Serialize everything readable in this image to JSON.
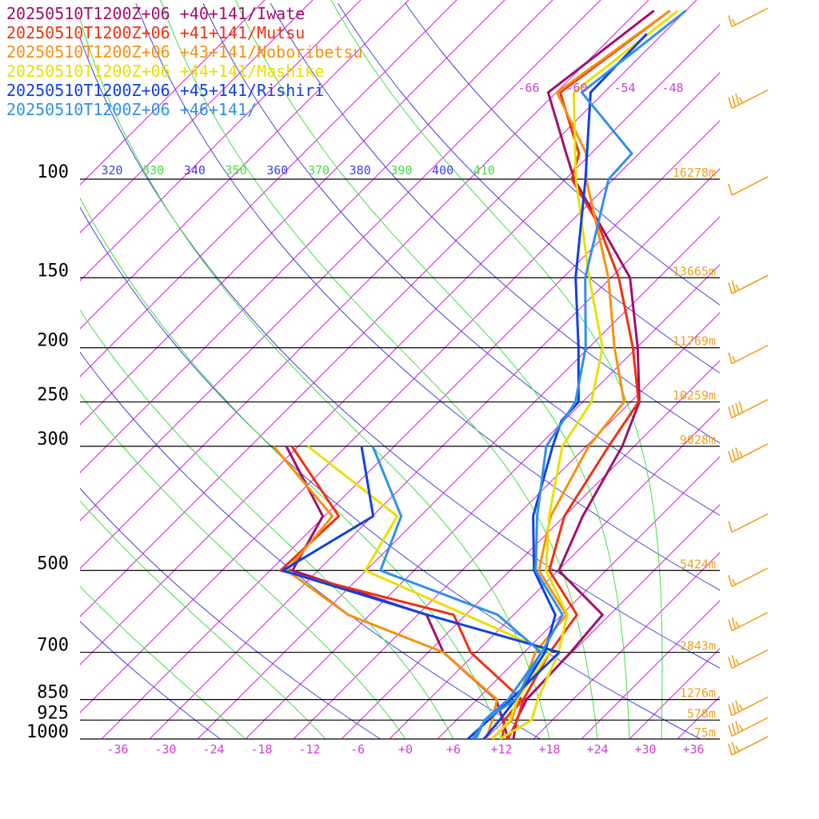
{
  "legend": [
    {
      "text": "20250510T1200Z+06 +40+141/Iwate",
      "color": "#a0106a"
    },
    {
      "text": "20250510T1200Z+06 +41+141/Mutsu",
      "color": "#f03010"
    },
    {
      "text": "20250510T1200Z+06 +43+141/Noboribetsu",
      "color": "#f89010"
    },
    {
      "text": "20250510T1200Z+06 +44+141/Mashike",
      "color": "#e8e000"
    },
    {
      "text": "20250510T1200Z+06 +45+141/Rishiri",
      "color": "#1040e0"
    },
    {
      "text": "20250510T1200Z+06 +46+141/",
      "color": "#3090e8"
    }
  ],
  "colors": {
    "isobar": "#000000",
    "isotherm": "#d020d0",
    "dry_adiabat": "#4040e0",
    "moist_adiabat": "#40e040",
    "height_label": "#f0a020",
    "wind_barb": "#f0a020",
    "tick_label": "#d040d0"
  },
  "chart_data": {
    "type": "line",
    "title": "",
    "xlabel": "",
    "ylabel": "",
    "y_scale": "log (pressure, hPa)",
    "pressure_levels": [
      100,
      150,
      200,
      250,
      300,
      500,
      700,
      850,
      925,
      1000
    ],
    "pressure_labels": [
      "100",
      "150",
      "200",
      "250",
      "300",
      "500",
      "700",
      "850",
      "925",
      "1000"
    ],
    "height_labels": [
      {
        "p": 100,
        "text": "16278m"
      },
      {
        "p": 150,
        "text": "13665m"
      },
      {
        "p": 200,
        "text": "11769m"
      },
      {
        "p": 250,
        "text": "10259m"
      },
      {
        "p": 300,
        "text": "9028m"
      },
      {
        "p": 500,
        "text": "5424m"
      },
      {
        "p": 700,
        "text": "2843m"
      },
      {
        "p": 850,
        "text": "1276m"
      },
      {
        "p": 925,
        "text": "578m"
      },
      {
        "p": 1000,
        "text": "-75m"
      }
    ],
    "temperature_ticks": [
      "-36",
      "-30",
      "-24",
      "-18",
      "-12",
      "-6",
      "+0",
      "+6",
      "+12",
      "+18",
      "+24",
      "+30",
      "+36"
    ],
    "upper_isotherm_labels": [
      "-66",
      "-60",
      "-54",
      "-48"
    ],
    "theta_labels": [
      "320",
      "330",
      "340",
      "350",
      "360",
      "370",
      "380",
      "390",
      "400",
      "410"
    ],
    "xlim": [
      -40,
      40
    ],
    "series": [
      {
        "name": "20250510T1200Z+06 +40+141/Iwate",
        "color": "#a0106a",
        "temperature": [
          [
            1000,
            13.5
          ],
          [
            925,
            11.5
          ],
          [
            850,
            10.2
          ],
          [
            700,
            9.8
          ],
          [
            600,
            9.1
          ],
          [
            500,
            -1.9
          ],
          [
            400,
            -5.7
          ],
          [
            300,
            -9.5
          ],
          [
            250,
            -12.9
          ],
          [
            200,
            -19.9
          ],
          [
            150,
            -29.6
          ],
          [
            100,
            -48.9
          ],
          [
            90,
            -53.1
          ],
          [
            70,
            -63.0
          ],
          [
            50,
            -60.0
          ]
        ],
        "dewpoint": [
          [
            1000,
            12.8
          ],
          [
            925,
            9.8
          ],
          [
            850,
            6.4
          ],
          [
            700,
            -6.1
          ],
          [
            600,
            -12.9
          ],
          [
            500,
            -35.2
          ],
          [
            400,
            -38.2
          ],
          [
            300,
            -51.5
          ]
        ]
      },
      {
        "name": "20250510T1200Z+06 +41+141/Mutsu",
        "color": "#f03010",
        "temperature": [
          [
            1000,
            12.8
          ],
          [
            925,
            11.6
          ],
          [
            850,
            9.8
          ],
          [
            700,
            7.2
          ],
          [
            600,
            5.9
          ],
          [
            500,
            -3.1
          ],
          [
            400,
            -8.0
          ],
          [
            300,
            -11.2
          ],
          [
            250,
            -13.0
          ],
          [
            200,
            -20.5
          ],
          [
            150,
            -31.0
          ],
          [
            120,
            -40.4
          ],
          [
            100,
            -49.2
          ],
          [
            90,
            -51.5
          ],
          [
            70,
            -61.5
          ],
          [
            50,
            -58.0
          ]
        ],
        "dewpoint": [
          [
            1000,
            12.1
          ],
          [
            925,
            10.0
          ],
          [
            850,
            9.6
          ],
          [
            700,
            -2.7
          ],
          [
            600,
            -9.5
          ],
          [
            500,
            -36.7
          ],
          [
            400,
            -36.2
          ],
          [
            300,
            -50.8
          ]
        ]
      },
      {
        "name": "20250510T1200Z+06 +43+141/Noboribetsu",
        "color": "#f89010",
        "temperature": [
          [
            1000,
            10.8
          ],
          [
            925,
            10.9
          ],
          [
            850,
            9.1
          ],
          [
            700,
            5.4
          ],
          [
            600,
            4.6
          ],
          [
            500,
            -4.4
          ],
          [
            400,
            -9.7
          ],
          [
            300,
            -13.7
          ],
          [
            250,
            -14.8
          ],
          [
            200,
            -22.8
          ],
          [
            150,
            -32.3
          ],
          [
            100,
            -47.4
          ],
          [
            90,
            -50.6
          ],
          [
            70,
            -61.9
          ],
          [
            50,
            -58.0
          ]
        ],
        "dewpoint": [
          [
            1000,
            10.1
          ],
          [
            925,
            8.5
          ],
          [
            850,
            6.5
          ],
          [
            700,
            -6.1
          ],
          [
            600,
            -22.7
          ],
          [
            500,
            -35.9
          ],
          [
            400,
            -37.0
          ],
          [
            300,
            -53.1
          ]
        ]
      },
      {
        "name": "20250510T1200Z+06 +44+141/Mashike",
        "color": "#e8e000",
        "temperature": [
          [
            1000,
            11.8
          ],
          [
            925,
            13.4
          ],
          [
            850,
            11.6
          ],
          [
            700,
            8.3
          ],
          [
            600,
            4.7
          ],
          [
            500,
            -3.5
          ],
          [
            400,
            -9.9
          ],
          [
            300,
            -17.0
          ],
          [
            250,
            -18.9
          ],
          [
            200,
            -24.3
          ],
          [
            150,
            -34.7
          ],
          [
            100,
            -48.7
          ],
          [
            70,
            -59.8
          ],
          [
            50,
            -57.0
          ]
        ],
        "dewpoint": [
          [
            1000,
            10.9
          ],
          [
            925,
            10.7
          ],
          [
            850,
            9.0
          ],
          [
            700,
            7.2
          ],
          [
            600,
            -8.0
          ],
          [
            500,
            -26.1
          ],
          [
            400,
            -28.9
          ],
          [
            300,
            -48.8
          ]
        ]
      },
      {
        "name": "20250510T1200Z+06 +45+141/Rishiri",
        "color": "#1040e0",
        "temperature": [
          [
            1000,
            9.8
          ],
          [
            925,
            9.4
          ],
          [
            850,
            8.8
          ],
          [
            700,
            6.6
          ],
          [
            600,
            3.2
          ],
          [
            500,
            -5.0
          ],
          [
            400,
            -11.9
          ],
          [
            300,
            -18.2
          ],
          [
            270,
            -20.3
          ],
          [
            250,
            -20.5
          ],
          [
            200,
            -27.3
          ],
          [
            150,
            -36.4
          ],
          [
            100,
            -47.5
          ],
          [
            70,
            -57.7
          ],
          [
            55,
            -58.0
          ]
        ],
        "dewpoint": [
          [
            1000,
            7.8
          ],
          [
            925,
            8.0
          ],
          [
            850,
            8.2
          ],
          [
            700,
            8.4
          ],
          [
            600,
            -12.8
          ],
          [
            500,
            -36.4
          ],
          [
            400,
            -31.9
          ],
          [
            300,
            -42.1
          ]
        ]
      },
      {
        "name": "20250510T1200Z+06 +46+141/",
        "color": "#3090e8",
        "temperature": [
          [
            1000,
            8.8
          ],
          [
            925,
            7.5
          ],
          [
            850,
            7.9
          ],
          [
            700,
            6.2
          ],
          [
            600,
            4.1
          ],
          [
            500,
            -4.8
          ],
          [
            400,
            -11.4
          ],
          [
            300,
            -19.0
          ],
          [
            250,
            -20.9
          ],
          [
            200,
            -26.4
          ],
          [
            150,
            -35.2
          ],
          [
            100,
            -44.6
          ],
          [
            90,
            -44.9
          ],
          [
            70,
            -58.8
          ],
          [
            50,
            -56.0
          ]
        ],
        "dewpoint": [
          [
            1000,
            8.4
          ],
          [
            925,
            7.6
          ],
          [
            850,
            8.8
          ],
          [
            700,
            6.1
          ],
          [
            600,
            -4.0
          ],
          [
            500,
            -24.2
          ],
          [
            400,
            -28.4
          ],
          [
            300,
            -40.7
          ]
        ]
      }
    ],
    "wind_barbs": [
      {
        "p": 1000,
        "speed_kt": 25
      },
      {
        "p": 925,
        "speed_kt": 35
      },
      {
        "p": 850,
        "speed_kt": 35
      },
      {
        "p": 700,
        "speed_kt": 25
      },
      {
        "p": 600,
        "speed_kt": 25
      },
      {
        "p": 500,
        "speed_kt": 15
      },
      {
        "p": 400,
        "speed_kt": 10
      },
      {
        "p": 300,
        "speed_kt": 35
      },
      {
        "p": 250,
        "speed_kt": 40
      },
      {
        "p": 200,
        "speed_kt": 15
      },
      {
        "p": 150,
        "speed_kt": 25
      },
      {
        "p": 100,
        "speed_kt": 10
      },
      {
        "p": 70,
        "speed_kt": 35
      },
      {
        "p": 50,
        "speed_kt": 15
      }
    ]
  }
}
